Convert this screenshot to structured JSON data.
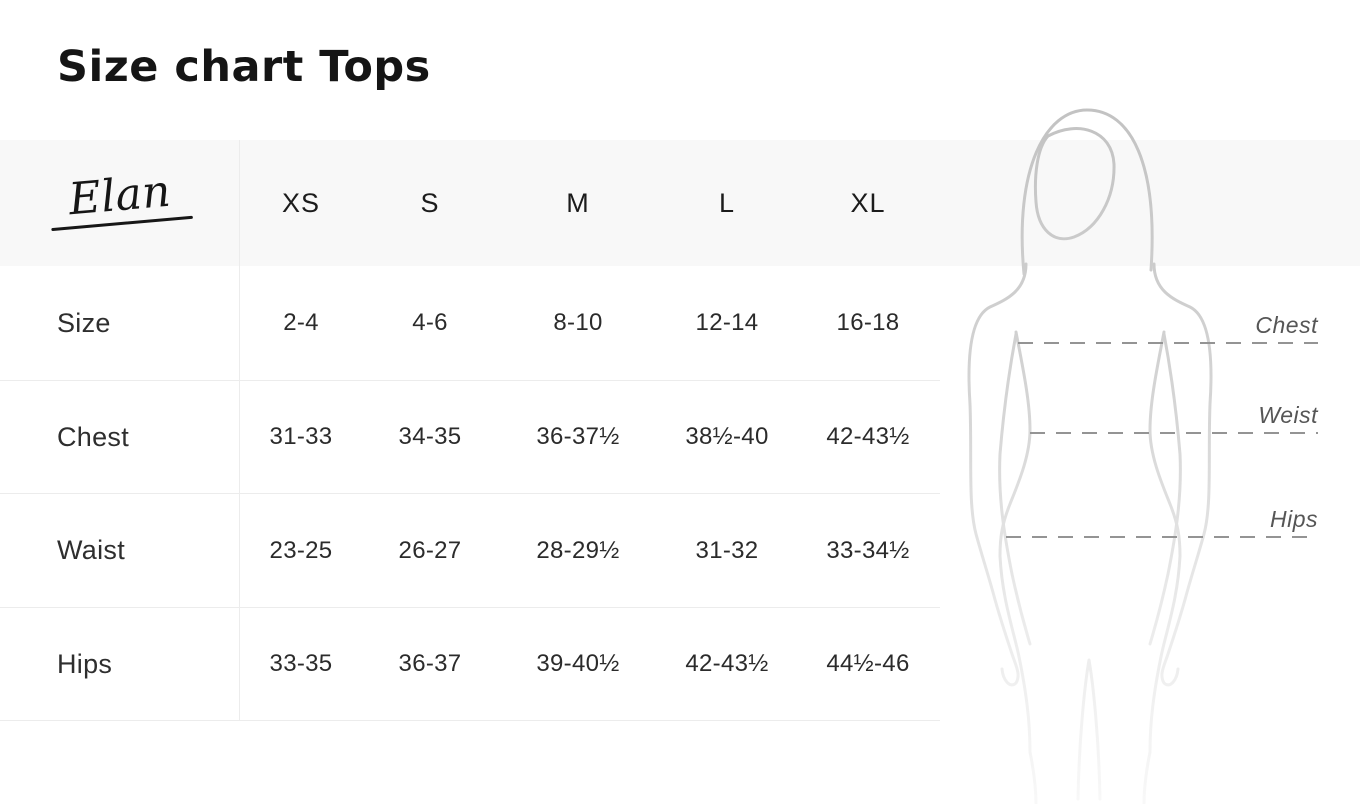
{
  "page": {
    "title": "Size chart Tops"
  },
  "brand": {
    "name": "Elan"
  },
  "size_chart": {
    "columns": [
      "XS",
      "S",
      "M",
      "L",
      "XL"
    ],
    "rows": [
      {
        "label": "Size",
        "values": [
          "2-4",
          "4-6",
          "8-10",
          "12-14",
          "16-18"
        ]
      },
      {
        "label": "Chest",
        "values": [
          "31-33",
          "34-35",
          "36-37½",
          "38½-40",
          "42-43½"
        ]
      },
      {
        "label": "Waist",
        "values": [
          "23-25",
          "26-27",
          "28-29½",
          "31-32",
          "33-34½"
        ]
      },
      {
        "label": "Hips",
        "values": [
          "33-35",
          "36-37",
          "39-40½",
          "42-43½",
          "44½-46"
        ]
      }
    ]
  },
  "chart_data": {
    "type": "table",
    "title": "Size chart Tops",
    "columns": [
      "XS",
      "S",
      "M",
      "L",
      "XL"
    ],
    "row_headers": [
      "Size",
      "Chest",
      "Waist",
      "Hips"
    ],
    "cells": [
      [
        "2-4",
        "4-6",
        "8-10",
        "12-14",
        "16-18"
      ],
      [
        "31-33",
        "34-35",
        "36-37½",
        "38½-40",
        "42-43½"
      ],
      [
        "23-25",
        "26-27",
        "28-29½",
        "31-32",
        "33-34½"
      ],
      [
        "33-35",
        "36-37",
        "39-40½",
        "42-43½",
        "44½-46"
      ]
    ]
  },
  "figure": {
    "measurement_labels": [
      "Chest",
      "Weist",
      "Hips"
    ]
  },
  "colors": {
    "band": "#f8f8f8",
    "border": "#ececec",
    "text": "#1d1d1d",
    "figure_stroke": "#c6c6c6",
    "dash_line": "#949494",
    "figure_label": "#565656"
  }
}
